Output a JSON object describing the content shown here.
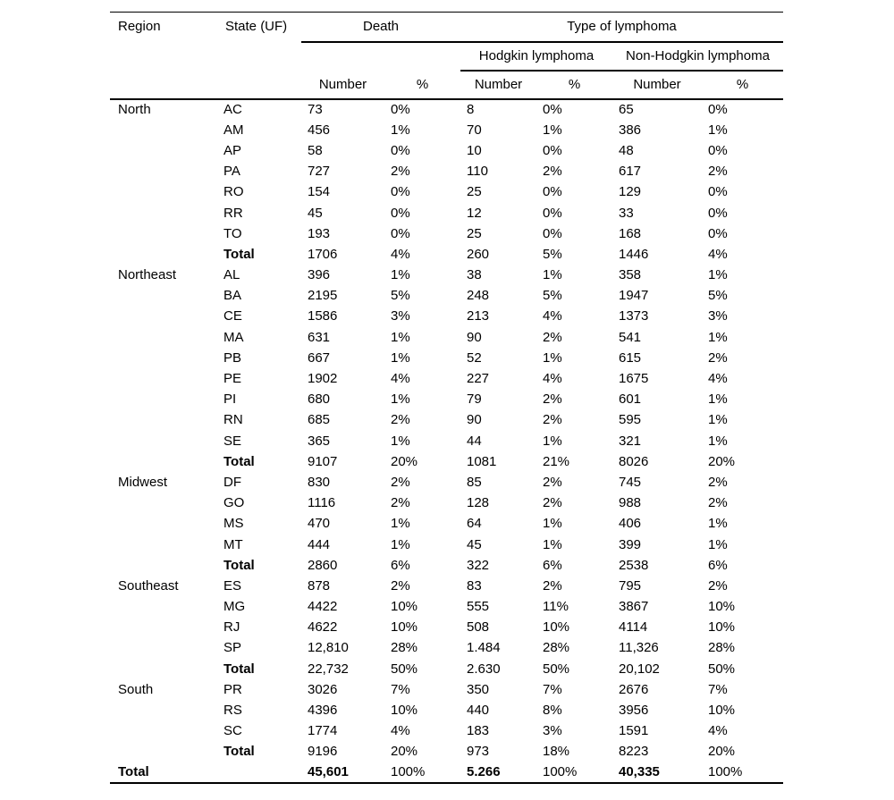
{
  "header": {
    "region": "Region",
    "state": "State (UF)",
    "death": "Death",
    "type_of_lymphoma": "Type of lymphoma",
    "hodgkin": "Hodgkin lymphoma",
    "non_hodgkin": "Non-Hodgkin lymphoma",
    "number": "Number",
    "percent": "%"
  },
  "chart_data": {
    "type": "table",
    "columns": [
      "Region",
      "State (UF)",
      "Death Number",
      "Death %",
      "Hodgkin lymphoma Number",
      "Hodgkin lymphoma %",
      "Non-Hodgkin lymphoma Number",
      "Non-Hodgkin lymphoma %"
    ],
    "rows": [
      {
        "region": "North",
        "state": "AC",
        "total": false,
        "values": [
          "73",
          "0%",
          "8",
          "0%",
          "65",
          "0%"
        ]
      },
      {
        "region": "",
        "state": "AM",
        "total": false,
        "values": [
          "456",
          "1%",
          "70",
          "1%",
          "386",
          "1%"
        ]
      },
      {
        "region": "",
        "state": "AP",
        "total": false,
        "values": [
          "58",
          "0%",
          "10",
          "0%",
          "48",
          "0%"
        ]
      },
      {
        "region": "",
        "state": "PA",
        "total": false,
        "values": [
          "727",
          "2%",
          "110",
          "2%",
          "617",
          "2%"
        ]
      },
      {
        "region": "",
        "state": "RO",
        "total": false,
        "values": [
          "154",
          "0%",
          "25",
          "0%",
          "129",
          "0%"
        ]
      },
      {
        "region": "",
        "state": "RR",
        "total": false,
        "values": [
          "45",
          "0%",
          "12",
          "0%",
          "33",
          "0%"
        ]
      },
      {
        "region": "",
        "state": "TO",
        "total": false,
        "values": [
          "193",
          "0%",
          "25",
          "0%",
          "168",
          "0%"
        ]
      },
      {
        "region": "",
        "state": "Total",
        "total": true,
        "values": [
          "1706",
          "4%",
          "260",
          "5%",
          "1446",
          "4%"
        ]
      },
      {
        "region": "Northeast",
        "state": "AL",
        "total": false,
        "values": [
          "396",
          "1%",
          "38",
          "1%",
          "358",
          "1%"
        ]
      },
      {
        "region": "",
        "state": "BA",
        "total": false,
        "values": [
          "2195",
          "5%",
          "248",
          "5%",
          "1947",
          "5%"
        ]
      },
      {
        "region": "",
        "state": "CE",
        "total": false,
        "values": [
          "1586",
          "3%",
          "213",
          "4%",
          "1373",
          "3%"
        ]
      },
      {
        "region": "",
        "state": "MA",
        "total": false,
        "values": [
          "631",
          "1%",
          "90",
          "2%",
          "541",
          "1%"
        ]
      },
      {
        "region": "",
        "state": "PB",
        "total": false,
        "values": [
          "667",
          "1%",
          "52",
          "1%",
          "615",
          "2%"
        ]
      },
      {
        "region": "",
        "state": "PE",
        "total": false,
        "values": [
          "1902",
          "4%",
          "227",
          "4%",
          "1675",
          "4%"
        ]
      },
      {
        "region": "",
        "state": "PI",
        "total": false,
        "values": [
          "680",
          "1%",
          "79",
          "2%",
          "601",
          "1%"
        ]
      },
      {
        "region": "",
        "state": "RN",
        "total": false,
        "values": [
          "685",
          "2%",
          "90",
          "2%",
          "595",
          "1%"
        ]
      },
      {
        "region": "",
        "state": "SE",
        "total": false,
        "values": [
          "365",
          "1%",
          "44",
          "1%",
          "321",
          "1%"
        ]
      },
      {
        "region": "",
        "state": "Total",
        "total": true,
        "values": [
          "9107",
          "20%",
          "1081",
          "21%",
          "8026",
          "20%"
        ]
      },
      {
        "region": "Midwest",
        "state": "DF",
        "total": false,
        "values": [
          "830",
          "2%",
          "85",
          "2%",
          "745",
          "2%"
        ]
      },
      {
        "region": "",
        "state": "GO",
        "total": false,
        "values": [
          "1116",
          "2%",
          "128",
          "2%",
          "988",
          "2%"
        ]
      },
      {
        "region": "",
        "state": "MS",
        "total": false,
        "values": [
          "470",
          "1%",
          "64",
          "1%",
          "406",
          "1%"
        ]
      },
      {
        "region": "",
        "state": "MT",
        "total": false,
        "values": [
          "444",
          "1%",
          "45",
          "1%",
          "399",
          "1%"
        ]
      },
      {
        "region": "",
        "state": "Total",
        "total": true,
        "values": [
          "2860",
          "6%",
          "322",
          "6%",
          "2538",
          "6%"
        ]
      },
      {
        "region": "Southeast",
        "state": "ES",
        "total": false,
        "values": [
          "878",
          "2%",
          "83",
          "2%",
          "795",
          "2%"
        ]
      },
      {
        "region": "",
        "state": "MG",
        "total": false,
        "values": [
          "4422",
          "10%",
          "555",
          "11%",
          "3867",
          "10%"
        ]
      },
      {
        "region": "",
        "state": "RJ",
        "total": false,
        "values": [
          "4622",
          "10%",
          "508",
          "10%",
          "4114",
          "10%"
        ]
      },
      {
        "region": "",
        "state": "SP",
        "total": false,
        "values": [
          "12,810",
          "28%",
          "1.484",
          "28%",
          "11,326",
          "28%"
        ]
      },
      {
        "region": "",
        "state": "Total",
        "total": true,
        "values": [
          "22,732",
          "50%",
          "2.630",
          "50%",
          "20,102",
          "50%"
        ]
      },
      {
        "region": "South",
        "state": "PR",
        "total": false,
        "values": [
          "3026",
          "7%",
          "350",
          "7%",
          "2676",
          "7%"
        ]
      },
      {
        "region": "",
        "state": "RS",
        "total": false,
        "values": [
          "4396",
          "10%",
          "440",
          "8%",
          "3956",
          "10%"
        ]
      },
      {
        "region": "",
        "state": "SC",
        "total": false,
        "values": [
          "1774",
          "4%",
          "183",
          "3%",
          "1591",
          "4%"
        ]
      },
      {
        "region": "",
        "state": "Total",
        "total": true,
        "values": [
          "9196",
          "20%",
          "973",
          "18%",
          "8223",
          "20%"
        ]
      }
    ],
    "grand_total": {
      "region": "Total",
      "values": [
        "45,601",
        "100%",
        "5.266",
        "100%",
        "40,335",
        "100%"
      ]
    }
  }
}
